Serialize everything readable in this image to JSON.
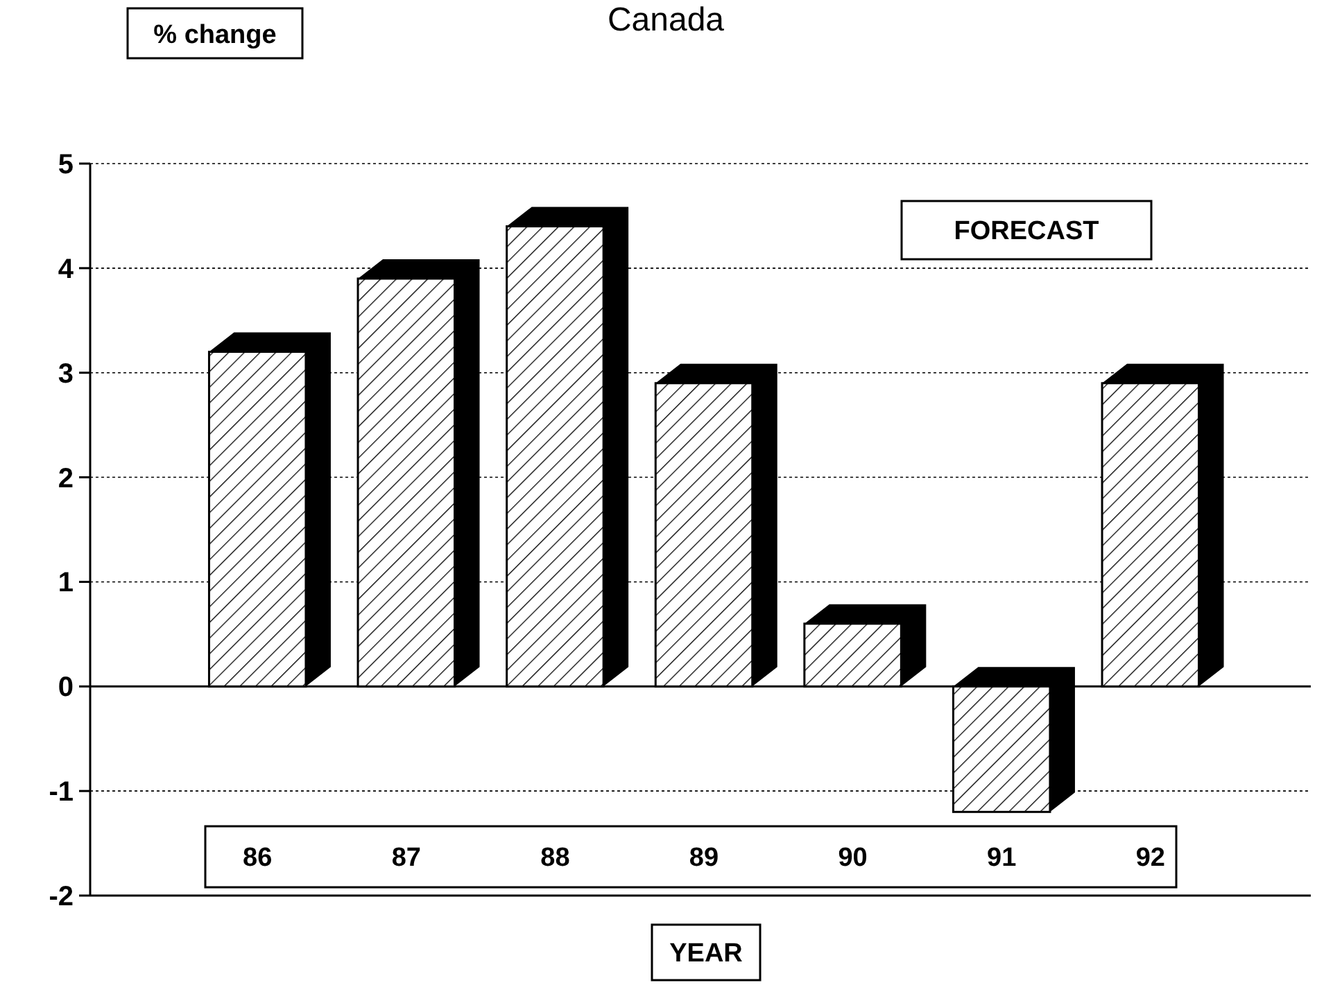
{
  "chart_data": {
    "type": "bar",
    "title": "Canada",
    "ylabel": "% change",
    "xlabel": "YEAR",
    "categories": [
      "86",
      "87",
      "88",
      "89",
      "90",
      "91",
      "92"
    ],
    "values": [
      3.2,
      3.9,
      4.4,
      2.9,
      0.6,
      -1.2,
      2.9
    ],
    "color": "#000000",
    "ylim": [
      -2,
      5
    ],
    "yticks": [
      -2,
      -1,
      0,
      1,
      2,
      3,
      4,
      5
    ],
    "grid": "y",
    "annotations": [
      "FORECAST"
    ]
  }
}
